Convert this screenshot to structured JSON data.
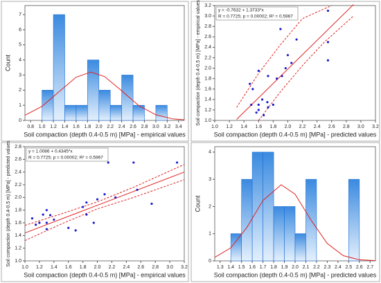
{
  "chart_data": [
    {
      "type": "histogram",
      "xlabel": "Soil compaction (depth 0.4-0.5 m) [MPa] - empirical values",
      "ylabel": "Count",
      "bins": [
        1.0,
        1.2,
        1.4,
        1.6,
        1.8,
        2.0,
        2.2,
        2.4,
        2.6,
        2.8,
        3.0,
        3.2
      ],
      "values": [
        2,
        7,
        1,
        1,
        4,
        2,
        1,
        3,
        1,
        0,
        1
      ],
      "curve_x": [
        0.7,
        1.0,
        1.3,
        1.6,
        1.86,
        2.1,
        2.4,
        2.7,
        3.0,
        3.3,
        3.5
      ],
      "curve_y": [
        0.34,
        0.93,
        1.9,
        2.86,
        3.2,
        2.9,
        1.96,
        0.98,
        0.37,
        0.1,
        0.04
      ],
      "color": "#1f6fd6",
      "curve_color": "#e02020",
      "xlim": [
        0.7,
        3.5
      ],
      "ylim": [
        0,
        7.6
      ],
      "xticks": [
        0.8,
        {
          "value": 1.0,
          "label": "1.0"
        },
        1.2,
        1.4,
        1.6,
        1.8,
        {
          "value": 2.0,
          "label": "2.0"
        },
        2.2,
        2.4,
        2.6,
        2.8,
        {
          "value": 3.0,
          "label": "3.0"
        },
        3.2,
        3.4
      ],
      "yticks": [
        0,
        1,
        2,
        3,
        4,
        5,
        6,
        7
      ],
      "grid": false
    },
    {
      "type": "scatter",
      "xlabel": "Soil compaction (depth 0.4-0.5 m) [MPa] - predicted values",
      "ylabel": "Soil compaction (depth 0.4-0.5 m) [MPa] - empirical values",
      "annotation": [
        "y = -0.7632 + 1.3733*x",
        "R = 0.7725; p = 0.00002; R² = 0.5967"
      ],
      "x": [
        1.67,
        1.57,
        1.6,
        1.73,
        1.8,
        1.6,
        1.5,
        1.72,
        1.65,
        1.52,
        1.48,
        1.85,
        1.73,
        1.92,
        1.6,
        1.97,
        2.05,
        2.55,
        2.0,
        2.55,
        2.12,
        1.9,
        2.55
      ],
      "y": [
        1.1,
        1.15,
        1.2,
        1.25,
        1.3,
        1.3,
        1.3,
        1.35,
        1.4,
        1.6,
        1.7,
        1.8,
        1.85,
        1.85,
        1.95,
        2.0,
        2.1,
        2.15,
        2.25,
        2.5,
        2.55,
        2.75,
        3.1
      ],
      "fit_x": [
        1.3,
        2.9
      ],
      "fit_y": [
        1.02,
        3.22
      ],
      "upper_x": [
        1.3,
        1.6,
        1.9,
        2.2,
        2.6
      ],
      "upper_y": [
        1.25,
        1.9,
        2.45,
        2.95,
        3.2
      ],
      "lower_x": [
        1.6,
        1.9,
        2.2,
        2.5,
        2.9
      ],
      "lower_y": [
        1.0,
        1.55,
        2.05,
        2.5,
        3.0
      ],
      "color": "#1a1acc",
      "line_color": "#e02020",
      "xlim": [
        1.0,
        3.2
      ],
      "ylim": [
        1.0,
        3.2
      ],
      "xticks": [
        {
          "value": 1.0,
          "label": "1.0"
        },
        1.2,
        1.4,
        1.6,
        1.8,
        {
          "value": 2.0,
          "label": "2.0"
        },
        2.2,
        2.4,
        2.6,
        2.8,
        {
          "value": 3.0,
          "label": "3.0"
        },
        3.2
      ],
      "yticks": [
        {
          "value": 1.0,
          "label": "1.0"
        },
        1.2,
        1.4,
        1.6,
        1.8,
        {
          "value": 2.0,
          "label": "2.0"
        },
        2.2,
        2.4,
        2.6,
        2.8,
        {
          "value": 3.0,
          "label": "3.0"
        },
        3.2
      ],
      "grid": false
    },
    {
      "type": "scatter",
      "xlabel": "Soil compaction (depth 0.4-0.5 m) [MPa] - empirical values",
      "ylabel": "Soil compaction (depth 0.4-0.5 m) [MPa] - predicted values",
      "annotation": [
        "y = 1.0086 + 0.4345*x",
        "R = 0.7725; p = 0.00002; R² = 0.5967"
      ],
      "x": [
        1.1,
        1.15,
        1.2,
        1.25,
        1.3,
        1.3,
        1.3,
        1.35,
        1.4,
        1.6,
        1.7,
        1.8,
        1.85,
        1.85,
        1.95,
        2.0,
        2.1,
        2.15,
        2.25,
        2.5,
        2.55,
        2.75,
        3.1
      ],
      "y": [
        1.67,
        1.57,
        1.6,
        1.73,
        1.8,
        1.6,
        1.5,
        1.72,
        1.65,
        1.52,
        1.48,
        1.85,
        1.73,
        1.92,
        1.6,
        1.97,
        2.05,
        2.55,
        2.0,
        2.55,
        2.12,
        1.9,
        2.55
      ],
      "fit_x": [
        1.0,
        3.2
      ],
      "fit_y": [
        1.44,
        2.4
      ],
      "upper_x": [
        1.0,
        1.5,
        2.0,
        2.5,
        3.2
      ],
      "upper_y": [
        1.56,
        1.74,
        1.93,
        2.16,
        2.52
      ],
      "lower_x": [
        1.0,
        1.5,
        2.0,
        2.5,
        3.2
      ],
      "lower_y": [
        1.32,
        1.58,
        1.82,
        2.0,
        2.28
      ],
      "color": "#1a1acc",
      "line_color": "#e02020",
      "xlim": [
        1.0,
        3.2
      ],
      "ylim": [
        1.0,
        2.8
      ],
      "xticks": [
        {
          "value": 1.0,
          "label": "1.0"
        },
        1.2,
        1.4,
        1.6,
        1.8,
        {
          "value": 2.0,
          "label": "2.0"
        },
        2.2,
        2.4,
        2.6,
        2.8,
        {
          "value": 3.0,
          "label": "3.0"
        },
        3.2
      ],
      "yticks": [
        {
          "value": 1.0,
          "label": "1.0"
        },
        1.2,
        1.4,
        1.6,
        1.8,
        {
          "value": 2.0,
          "label": "2.0"
        },
        2.2,
        2.4,
        2.6,
        2.8
      ],
      "grid": false
    },
    {
      "type": "histogram",
      "xlabel": "Soil compaction (depth 0.4-0.5 m) [MPa] - predicted values",
      "ylabel": "Count",
      "bins": [
        1.4,
        1.5,
        1.6,
        1.7,
        1.8,
        1.9,
        2.0,
        2.1,
        2.2,
        2.3,
        2.4,
        2.5,
        2.6
      ],
      "values": [
        1,
        3,
        4,
        4,
        2,
        2,
        1,
        3,
        0,
        0,
        0,
        3
      ],
      "curve_x": [
        1.25,
        1.4,
        1.55,
        1.7,
        1.87,
        2.0,
        2.15,
        2.3,
        2.45,
        2.6,
        2.75
      ],
      "curve_y": [
        0.13,
        0.48,
        1.23,
        2.22,
        2.8,
        2.45,
        1.49,
        0.64,
        0.19,
        0.04,
        0.01
      ],
      "color": "#1f6fd6",
      "curve_color": "#e02020",
      "xlim": [
        1.25,
        2.75
      ],
      "ylim": [
        0,
        4.2
      ],
      "xticks": [
        1.3,
        1.4,
        1.5,
        1.6,
        1.7,
        1.8,
        1.9,
        {
          "value": 2.0,
          "label": "2.0"
        },
        2.1,
        2.2,
        2.3,
        2.4,
        2.5,
        2.6,
        2.7
      ],
      "yticks": [
        0,
        1,
        2,
        3,
        4
      ],
      "grid": false
    }
  ]
}
